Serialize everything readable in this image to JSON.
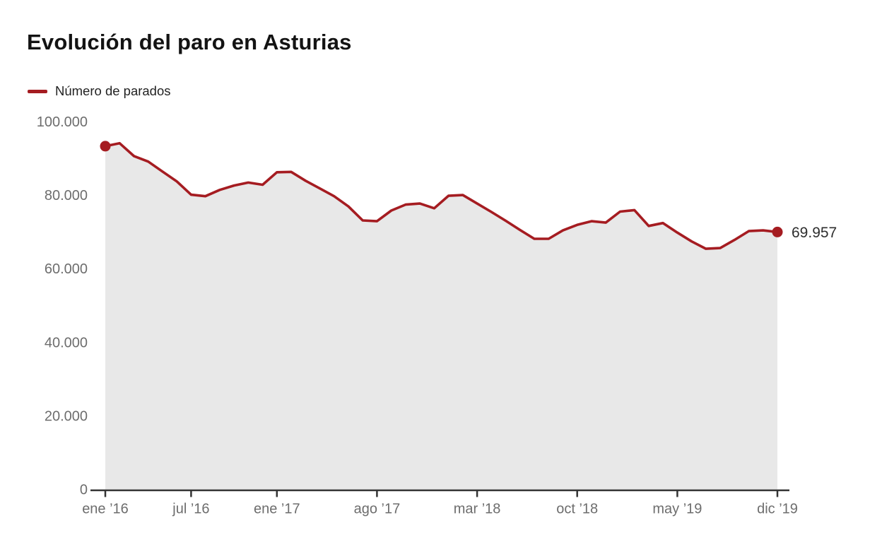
{
  "header": {
    "title": "Evolución del paro en Asturias"
  },
  "legend": {
    "label": "Número de parados",
    "swatch_color": "#a51c21"
  },
  "chart_data": {
    "type": "line",
    "title": "Evolución del paro en Asturias",
    "series_name": "Número de parados",
    "x": [
      "ene ’16",
      "feb ’16",
      "mar ’16",
      "abr ’16",
      "may ’16",
      "jun ’16",
      "jul ’16",
      "ago ’16",
      "sep ’16",
      "oct ’16",
      "nov ’16",
      "dic ’16",
      "ene ’17",
      "feb ’17",
      "mar ’17",
      "abr ’17",
      "may ’17",
      "jun ’17",
      "jul ’17",
      "ago ’17",
      "sep ’17",
      "oct ’17",
      "nov ’17",
      "dic ’17",
      "ene ’18",
      "feb ’18",
      "mar ’18",
      "abr ’18",
      "may ’18",
      "jun ’18",
      "jul ’18",
      "ago ’18",
      "sep ’18",
      "oct ’18",
      "nov ’18",
      "dic ’18",
      "ene ’19",
      "feb ’19",
      "mar ’19",
      "abr ’19",
      "may ’19",
      "jun ’19",
      "jul ’19",
      "ago ’19",
      "sep ’19",
      "oct ’19",
      "nov ’19",
      "dic ’19"
    ],
    "values": [
      93300,
      94100,
      90600,
      89100,
      86400,
      83700,
      80100,
      79700,
      81400,
      82600,
      83400,
      82800,
      86200,
      86300,
      83900,
      81800,
      79700,
      76900,
      73100,
      72900,
      75800,
      77400,
      77700,
      76400,
      79800,
      80000,
      77700,
      75400,
      73000,
      70500,
      68100,
      68100,
      70400,
      71900,
      72900,
      72500,
      75500,
      75900,
      71600,
      72400,
      69800,
      67400,
      65400,
      65600,
      67800,
      70200,
      70400,
      69957
    ],
    "ylim": [
      0,
      100000
    ],
    "yticks": {
      "values": [
        0,
        20000,
        40000,
        60000,
        80000,
        100000
      ],
      "labels": [
        "0",
        "20.000",
        "40.000",
        "60.000",
        "80.000",
        "100.000"
      ]
    },
    "xticks": {
      "indices": [
        0,
        6,
        12,
        19,
        26,
        33,
        40,
        47
      ],
      "labels": [
        "ene ’16",
        "jul ’16",
        "ene ’17",
        "ago ’17",
        "mar ’18",
        "oct ’18",
        "may ’19",
        "dic ’19"
      ]
    },
    "end_label": "69.957",
    "grid": "off",
    "legend_position": "top-left",
    "colors": {
      "line": "#a51c21",
      "area": "#e8e8e8",
      "axis": "#333333",
      "tick_text": "#6d6d6d",
      "end_label_text": "#2e2e2e"
    }
  }
}
